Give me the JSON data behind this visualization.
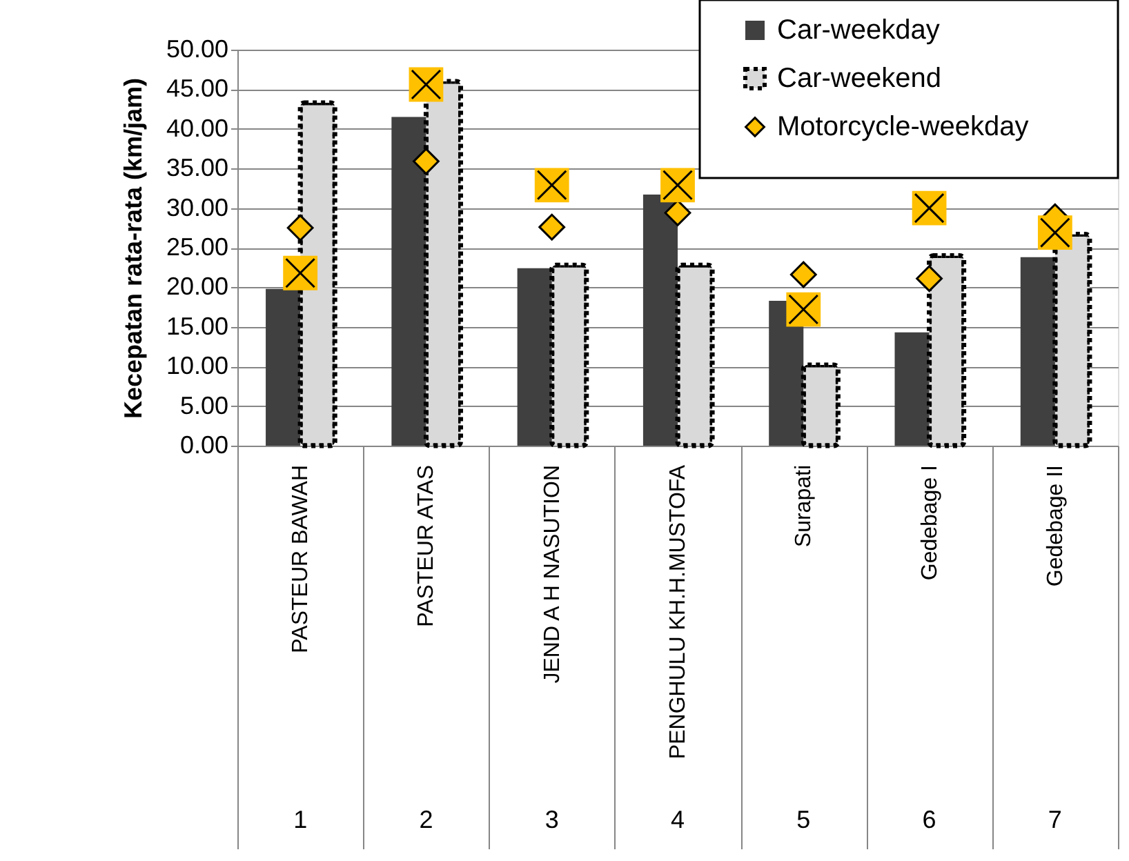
{
  "chart_data": {
    "type": "bar",
    "ylabel": "Kecepatan rata-rata (km/jam)",
    "categories": [
      "PASTEUR BAWAH",
      "PASTEUR ATAS",
      "JEND A H NASUTION",
      "PENGHULU KH.H.MUSTOFA",
      "Surapati",
      "Gedebage I",
      "Gedebage II"
    ],
    "series": [
      {
        "name": "Car-weekday",
        "color": "#404040",
        "values": [
          19.8,
          41.5,
          22.4,
          31.7,
          18.3,
          14.3,
          23.8
        ]
      },
      {
        "name": "Car-weekend",
        "color": "#d9d9d9",
        "line_style": "dotted",
        "values": [
          43.3,
          46.0,
          22.8,
          22.8,
          10.2,
          24.0,
          26.7
        ]
      },
      {
        "name": "Motorcycle-weekday",
        "type": "scatter",
        "marker": "diamond",
        "color": "#ffc000",
        "values": [
          27.5,
          35.9,
          27.6,
          29.4,
          21.6,
          21.1,
          28.9
        ]
      },
      {
        "type": "scatter",
        "marker": "square",
        "color": "#ffc000",
        "values": [
          21.8,
          45.6,
          32.9,
          32.9,
          17.2,
          30.0,
          26.9
        ]
      }
    ],
    "annotations": [
      "1",
      "2",
      "3",
      "4",
      "5",
      "6",
      "7"
    ],
    "ylim": [
      0,
      50
    ],
    "yticks": [
      {
        "value": 0,
        "label": "0.00"
      },
      {
        "value": 5,
        "label": "5.00"
      },
      {
        "value": 10,
        "label": "10.00"
      },
      {
        "value": 15,
        "label": "15.00"
      },
      {
        "value": 20,
        "label": "20.00"
      },
      {
        "value": 25,
        "label": "25.00"
      },
      {
        "value": 30,
        "label": "30.00"
      },
      {
        "value": 35,
        "label": "35.00"
      },
      {
        "value": 40,
        "label": "40.00"
      },
      {
        "value": 45,
        "label": "45.00"
      },
      {
        "value": 50,
        "label": "50.00"
      }
    ],
    "grid": "y",
    "legend": "top right"
  }
}
